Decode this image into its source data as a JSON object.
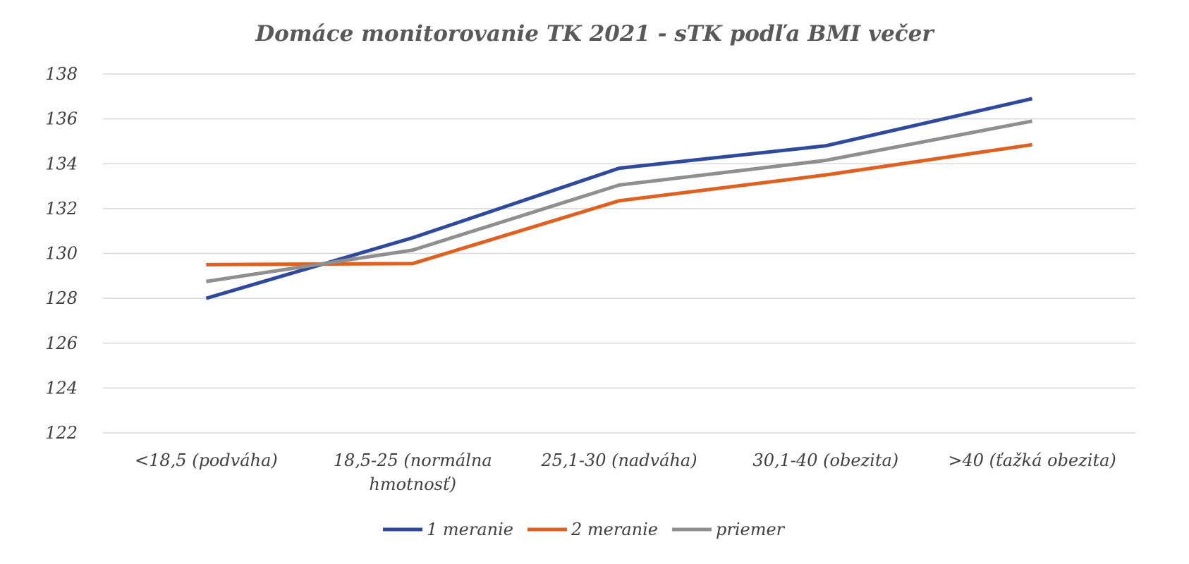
{
  "chart_data": {
    "type": "line",
    "title": "Domáce monitorovanie TK 2021 - sTK podľa BMI večer",
    "xlabel": "",
    "ylabel": "",
    "categories": [
      [
        "<18,5 (podváha)"
      ],
      [
        "18,5-25 (normálna",
        "hmotnosť)"
      ],
      [
        "25,1-30 (nadváha)"
      ],
      [
        "30,1-40 (obezita)"
      ],
      [
        ">40 (ťažká obezita)"
      ]
    ],
    "ylim": [
      122,
      138
    ],
    "yticks": [
      122,
      124,
      126,
      128,
      130,
      132,
      134,
      136,
      138
    ],
    "grid": true,
    "legend_position": "bottom",
    "series": [
      {
        "name": "1 meranie",
        "color": "#2e4a9e",
        "values": [
          128.0,
          130.7,
          133.8,
          134.8,
          136.9
        ]
      },
      {
        "name": "2 meranie",
        "color": "#e0601f",
        "values": [
          129.5,
          129.55,
          132.35,
          133.5,
          134.85
        ]
      },
      {
        "name": "priemer",
        "color": "#8f8f8f",
        "values": [
          128.75,
          130.15,
          133.05,
          134.15,
          135.9
        ]
      }
    ]
  }
}
